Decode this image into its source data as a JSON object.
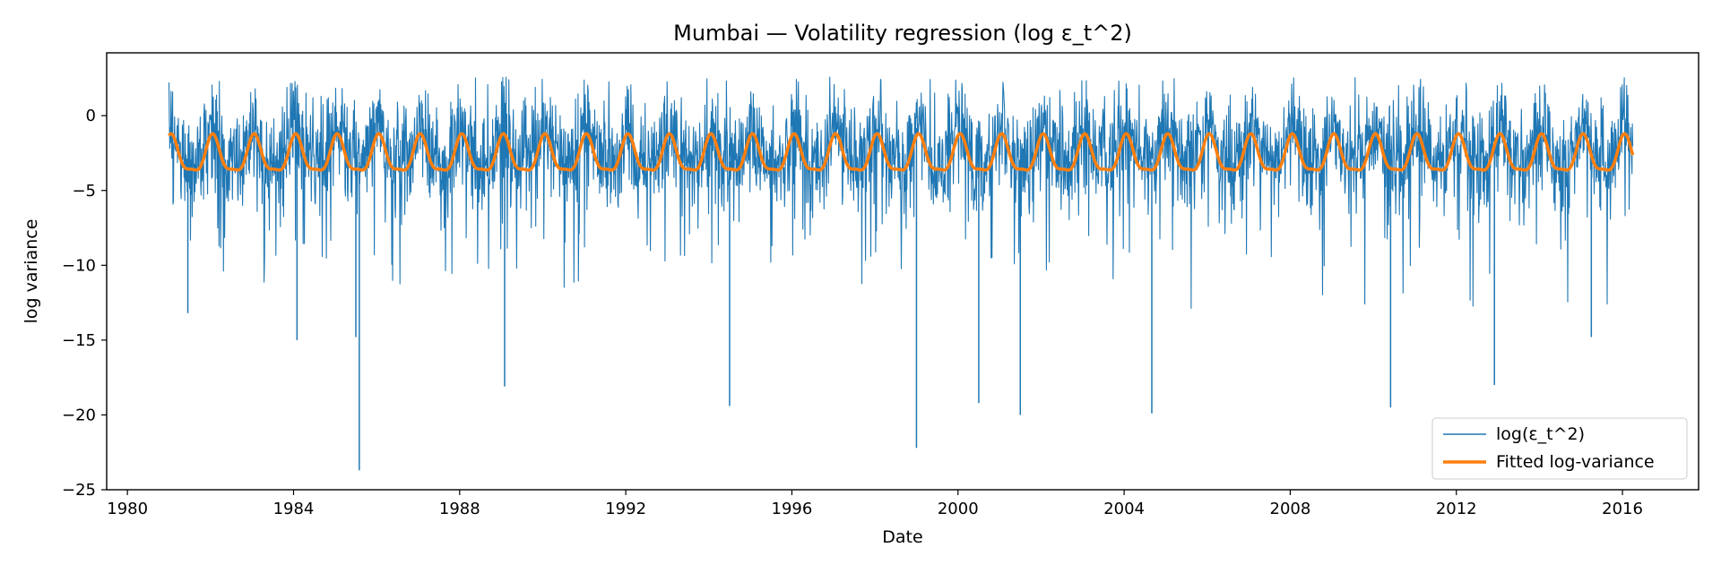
{
  "chart_data": {
    "type": "line",
    "title": "Mumbai — Volatility regression (log ε_t^2)",
    "xlabel": "Date",
    "ylabel": "log variance",
    "xlim": [
      "1979-07-01",
      "2017-11-01"
    ],
    "ylim": [
      -25,
      4.2
    ],
    "x_ticks": [
      "1980",
      "1984",
      "1988",
      "1992",
      "1996",
      "2000",
      "2004",
      "2008",
      "2012",
      "2016"
    ],
    "y_ticks": [
      -25,
      -20,
      -15,
      -10,
      -5,
      0
    ],
    "y_tick_labels": [
      "−25",
      "−20",
      "−15",
      "−10",
      "−5",
      "0"
    ],
    "grid": false,
    "legend_position": "lower right",
    "series": [
      {
        "name": "log(ε_t^2)",
        "color": "#1f77b4",
        "kind": "daily noisy residual series",
        "x_range": [
          "1981-01-01",
          "2016-03-31"
        ],
        "notable_minima": [
          {
            "x": "1981-06-15",
            "y": -13.2
          },
          {
            "x": "1984-02-01",
            "y": -15.0
          },
          {
            "x": "1985-07-01",
            "y": -14.8
          },
          {
            "x": "1985-08-01",
            "y": -23.7
          },
          {
            "x": "1989-02-01",
            "y": -18.1
          },
          {
            "x": "1994-07-01",
            "y": -19.4
          },
          {
            "x": "1999-01-01",
            "y": -22.2
          },
          {
            "x": "2000-07-01",
            "y": -19.2
          },
          {
            "x": "2001-07-01",
            "y": -20.0
          },
          {
            "x": "2004-09-01",
            "y": -19.9
          },
          {
            "x": "2010-06-01",
            "y": -19.5
          },
          {
            "x": "2012-12-01",
            "y": -18.0
          },
          {
            "x": "2015-04-01",
            "y": -14.8
          }
        ]
      },
      {
        "name": "Fitted log-variance",
        "color": "#ff7f0e",
        "kind": "annual seasonal fit",
        "x_range": [
          "1981-01-01",
          "2016-03-31"
        ],
        "period_years": 1,
        "max": -1.3,
        "min": -4.2,
        "secondary_min": -2.6
      }
    ]
  }
}
